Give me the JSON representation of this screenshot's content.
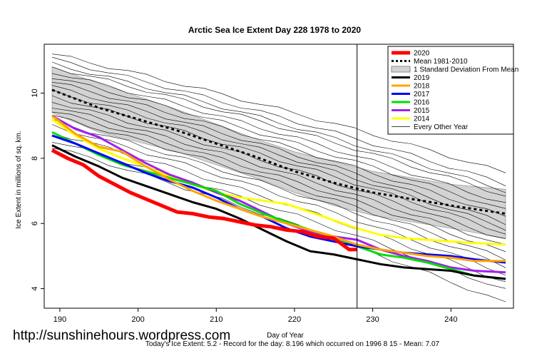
{
  "chart_data": {
    "type": "line",
    "title": "Arctic Sea Ice Extent Day 228 1978 to 2020",
    "xlabel": "Day of Year",
    "ylabel": "Ice Extent in millions of sq. km.",
    "xlim": [
      188,
      248
    ],
    "ylim": [
      3.4,
      11.5
    ],
    "x_ticks": [
      190,
      200,
      210,
      220,
      230,
      240
    ],
    "y_ticks": [
      4,
      6,
      8,
      10
    ],
    "marker_day": 228,
    "legend_position": "top-right",
    "legend": [
      {
        "label": "2020",
        "color": "#ff0000",
        "style": "thick"
      },
      {
        "label": "Mean 1981-2010",
        "color": "#000000",
        "style": "dotted"
      },
      {
        "label": "1 Standard Deviation From Mean",
        "color": "#d3d3d3",
        "style": "band"
      },
      {
        "label": "2019",
        "color": "#000000",
        "style": "solid"
      },
      {
        "label": "2018",
        "color": "#ffa500",
        "style": "solid"
      },
      {
        "label": "2017",
        "color": "#0000ff",
        "style": "solid"
      },
      {
        "label": "2016",
        "color": "#00dd00",
        "style": "solid"
      },
      {
        "label": "2015",
        "color": "#a020f0",
        "style": "solid"
      },
      {
        "label": "2014",
        "color": "#ffff00",
        "style": "solid"
      },
      {
        "label": "Every Other Year",
        "color": "#000000",
        "style": "thin"
      }
    ],
    "mean": {
      "x": [
        189,
        195,
        200,
        205,
        210,
        215,
        220,
        225,
        230,
        235,
        240,
        247
      ],
      "values": [
        10.1,
        9.55,
        9.2,
        8.85,
        8.45,
        8.05,
        7.6,
        7.25,
        6.95,
        6.75,
        6.55,
        6.3
      ]
    },
    "std_band": {
      "x": [
        189,
        195,
        200,
        205,
        210,
        215,
        220,
        225,
        230,
        235,
        240,
        247
      ],
      "upper": [
        10.8,
        10.3,
        9.9,
        9.5,
        9.05,
        8.6,
        8.2,
        7.9,
        7.6,
        7.4,
        7.2,
        7.05
      ],
      "lower": [
        9.4,
        8.8,
        8.5,
        8.2,
        7.8,
        7.4,
        6.95,
        6.55,
        6.25,
        6.05,
        5.85,
        5.55
      ]
    },
    "series": [
      {
        "name": "2020",
        "color": "#ff0000",
        "width": 5,
        "x": [
          189,
          191,
          193,
          195,
          197,
          199,
          201,
          203,
          205,
          207,
          209,
          211,
          213,
          215,
          217,
          219,
          221,
          223,
          225,
          227,
          228
        ],
        "values": [
          8.25,
          8.0,
          7.8,
          7.45,
          7.2,
          6.95,
          6.75,
          6.55,
          6.35,
          6.3,
          6.2,
          6.15,
          6.05,
          5.95,
          5.9,
          5.8,
          5.75,
          5.6,
          5.55,
          5.2,
          5.2
        ]
      },
      {
        "name": "2019",
        "color": "#000000",
        "width": 3,
        "x": [
          189,
          192,
          195,
          198,
          201,
          204,
          207,
          210,
          213,
          216,
          219,
          222,
          225,
          228,
          231,
          234,
          237,
          240,
          243,
          247
        ],
        "values": [
          8.4,
          8.05,
          7.75,
          7.4,
          7.15,
          6.9,
          6.65,
          6.45,
          6.15,
          5.8,
          5.45,
          5.15,
          5.05,
          4.9,
          4.75,
          4.65,
          4.6,
          4.55,
          4.4,
          4.3
        ]
      },
      {
        "name": "2018",
        "color": "#ffa500",
        "width": 3,
        "x": [
          189,
          192,
          195,
          198,
          201,
          204,
          207,
          210,
          213,
          216,
          219,
          222,
          225,
          228,
          231,
          234,
          237,
          240,
          243,
          247
        ],
        "values": [
          9.3,
          8.75,
          8.35,
          8.2,
          7.75,
          7.35,
          7.0,
          6.7,
          6.45,
          6.2,
          6.0,
          5.8,
          5.6,
          5.35,
          5.2,
          5.1,
          5.0,
          4.95,
          4.85,
          4.85
        ]
      },
      {
        "name": "2017",
        "color": "#0000ff",
        "width": 3,
        "x": [
          189,
          192,
          195,
          198,
          201,
          204,
          207,
          210,
          213,
          216,
          219,
          222,
          225,
          228,
          231,
          234,
          237,
          240,
          243,
          247
        ],
        "values": [
          8.7,
          8.45,
          8.15,
          7.85,
          7.55,
          7.3,
          7.1,
          6.8,
          6.45,
          6.2,
          5.85,
          5.6,
          5.45,
          5.3,
          5.2,
          5.1,
          5.05,
          5.0,
          4.9,
          4.8
        ]
      },
      {
        "name": "2016",
        "color": "#00dd00",
        "width": 3,
        "x": [
          189,
          192,
          195,
          198,
          201,
          204,
          207,
          210,
          213,
          216,
          219,
          222,
          225,
          228,
          231,
          234,
          237,
          240,
          243,
          247
        ],
        "values": [
          8.8,
          8.45,
          8.1,
          7.8,
          7.6,
          7.4,
          7.2,
          7.0,
          6.6,
          6.3,
          6.05,
          5.8,
          5.6,
          5.3,
          5.05,
          4.95,
          4.8,
          4.6,
          4.4,
          4.3
        ]
      },
      {
        "name": "2015",
        "color": "#a020f0",
        "width": 3,
        "x": [
          189,
          192,
          195,
          198,
          201,
          204,
          207,
          210,
          213,
          216,
          219,
          222,
          225,
          228,
          231,
          234,
          237,
          240,
          243,
          247
        ],
        "values": [
          9.3,
          8.9,
          8.65,
          8.25,
          7.85,
          7.5,
          7.25,
          6.95,
          6.7,
          6.35,
          6.0,
          5.75,
          5.6,
          5.5,
          5.2,
          5.0,
          4.85,
          4.65,
          4.55,
          4.5
        ]
      },
      {
        "name": "2014",
        "color": "#ffff00",
        "width": 3,
        "x": [
          189,
          192,
          195,
          198,
          201,
          204,
          207,
          210,
          213,
          216,
          219,
          222,
          225,
          228,
          231,
          234,
          237,
          240,
          243,
          247
        ],
        "values": [
          9.2,
          8.7,
          8.3,
          8.0,
          7.75,
          7.45,
          7.2,
          6.95,
          6.8,
          6.7,
          6.6,
          6.35,
          6.1,
          5.85,
          5.65,
          5.55,
          5.5,
          5.45,
          5.4,
          5.35
        ]
      }
    ],
    "other_years": [
      {
        "start": 11.2,
        "end": 7.55
      },
      {
        "start": 11.05,
        "end": 7.2
      },
      {
        "start": 10.9,
        "end": 7.0
      },
      {
        "start": 10.8,
        "end": 6.85
      },
      {
        "start": 10.65,
        "end": 6.6
      },
      {
        "start": 10.5,
        "end": 6.4
      },
      {
        "start": 10.35,
        "end": 6.2
      },
      {
        "start": 10.2,
        "end": 6.0
      },
      {
        "start": 10.05,
        "end": 5.85
      },
      {
        "start": 9.9,
        "end": 5.7
      },
      {
        "start": 9.75,
        "end": 5.5
      },
      {
        "start": 9.6,
        "end": 5.3
      },
      {
        "start": 9.45,
        "end": 5.1
      },
      {
        "start": 9.3,
        "end": 4.9
      },
      {
        "start": 9.15,
        "end": 4.7
      },
      {
        "start": 9.0,
        "end": 4.45
      },
      {
        "start": 8.8,
        "end": 4.2
      },
      {
        "start": 8.55,
        "end": 3.95
      },
      {
        "start": 8.35,
        "end": 3.55
      }
    ]
  },
  "watermark": "http://sunshinehours.wordpress.com",
  "footer": "Today's Ice Extent: 5.2  - Record for the day: 8.196 which occurred on 1996 8 15  - Mean: 7.07"
}
